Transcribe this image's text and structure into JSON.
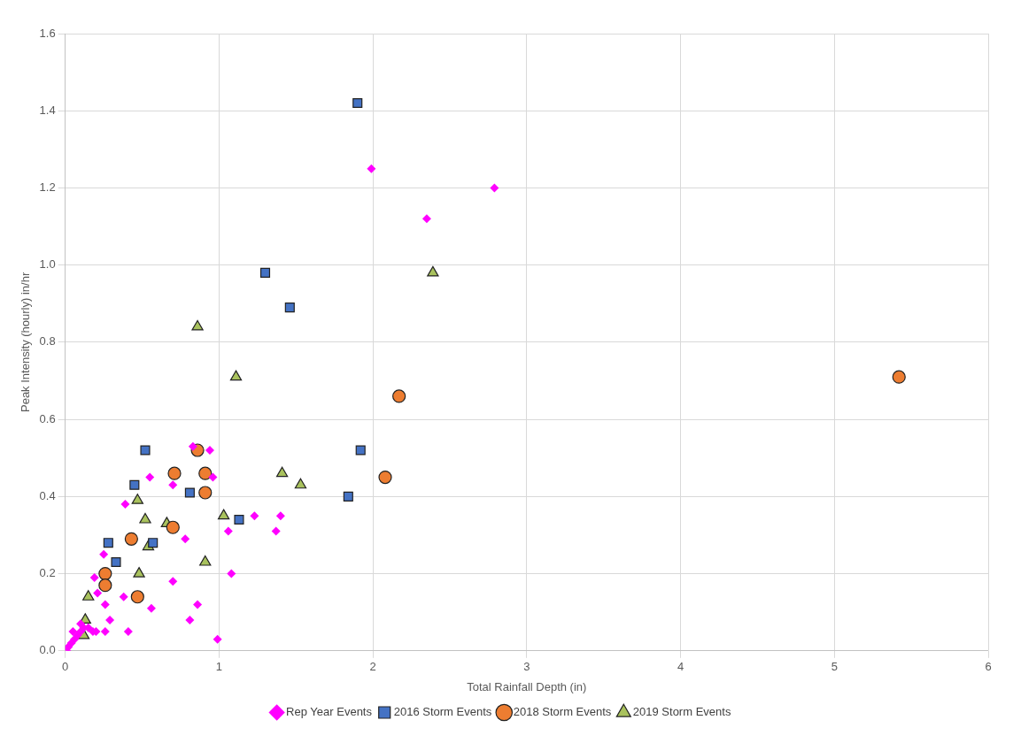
{
  "chart_data": {
    "type": "scatter",
    "xlabel": "Total Rainfall Depth (in)",
    "ylabel": "Peak Intensity (hourly) in/hr",
    "xlim": [
      0,
      6
    ],
    "xticks": [
      0,
      1,
      2,
      3,
      4,
      5,
      6
    ],
    "ylim": [
      0,
      1.6
    ],
    "yticks": [
      {
        "value": 0,
        "label": "0.0"
      },
      {
        "value": 0.2,
        "label": "0.2"
      },
      {
        "value": 0.4,
        "label": "0.4"
      },
      {
        "value": 0.6,
        "label": "0.6"
      },
      {
        "value": 0.8,
        "label": "0.8"
      },
      {
        "value": 1,
        "label": "1.0"
      },
      {
        "value": 1.2,
        "label": "1.2"
      },
      {
        "value": 1.4,
        "label": "1.4"
      },
      {
        "value": 1.6,
        "label": "1.6"
      }
    ],
    "grid": true,
    "legend": "bottom",
    "series": [
      {
        "name": "Rep Year Events",
        "color": "#ff00ff",
        "marker": "diamond",
        "x": [
          1.99,
          2.35,
          2.79,
          0.83,
          0.94,
          0.55,
          0.7,
          0.96,
          0.39,
          1.23,
          1.4,
          1.06,
          1.37,
          0.78,
          0.25,
          1.08,
          0.7,
          0.19,
          0.21,
          0.38,
          0.26,
          0.56,
          0.86,
          0.29,
          0.81,
          0.26,
          0.41,
          0.99,
          0.01,
          0.02,
          0.04,
          0.05,
          0.06,
          0.08,
          0.1,
          0.12,
          0.15,
          0.18,
          0.2,
          0.1
        ],
        "values": [
          1.25,
          1.12,
          1.2,
          0.53,
          0.52,
          0.45,
          0.43,
          0.45,
          0.38,
          0.35,
          0.35,
          0.31,
          0.31,
          0.29,
          0.25,
          0.2,
          0.18,
          0.19,
          0.15,
          0.14,
          0.12,
          0.11,
          0.12,
          0.08,
          0.08,
          0.05,
          0.05,
          0.03,
          0,
          0.01,
          0.02,
          0.05,
          0.03,
          0.04,
          0.05,
          0.06,
          0.06,
          0.05,
          0.05,
          0.07
        ]
      },
      {
        "name": "2016 Storm Events",
        "color": "#4472c4",
        "marker": "square",
        "x": [
          1.9,
          1.3,
          1.46,
          0.52,
          0.45,
          0.81,
          1.13,
          0.28,
          0.57,
          0.33,
          1.92,
          1.84
        ],
        "values": [
          1.42,
          0.98,
          0.89,
          0.52,
          0.43,
          0.41,
          0.34,
          0.28,
          0.28,
          0.23,
          0.52,
          0.4
        ]
      },
      {
        "name": "2018 Storm Events",
        "color": "#ed7d31",
        "marker": "circle",
        "x": [
          5.42,
          2.17,
          2.08,
          0.86,
          0.71,
          0.91,
          0.91,
          0.7,
          0.43,
          0.26,
          0.26,
          0.47
        ],
        "values": [
          0.71,
          0.66,
          0.45,
          0.52,
          0.46,
          0.46,
          0.41,
          0.32,
          0.29,
          0.2,
          0.17,
          0.14
        ]
      },
      {
        "name": "2019 Storm Events",
        "color": "#a9c25d",
        "marker": "triangle",
        "x": [
          2.39,
          0.86,
          1.11,
          1.41,
          1.53,
          0.47,
          0.52,
          0.66,
          1.03,
          0.54,
          0.91,
          0.48,
          0.15,
          0.13,
          0.12
        ],
        "values": [
          0.98,
          0.84,
          0.71,
          0.46,
          0.43,
          0.39,
          0.34,
          0.33,
          0.35,
          0.27,
          0.23,
          0.2,
          0.14,
          0.08,
          0.04
        ]
      }
    ]
  }
}
